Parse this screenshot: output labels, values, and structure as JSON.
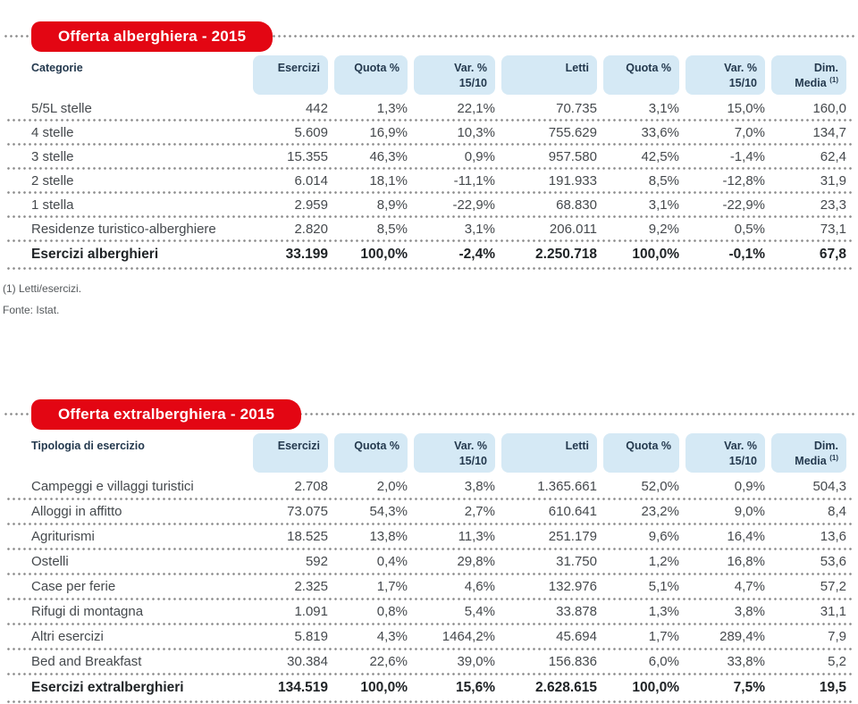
{
  "colors": {
    "banner_red": "#e30613",
    "header_pill_blue": "#d5e9f5",
    "header_text": "#24394e",
    "body_text": "#45494d",
    "divider_dot_gray": "#8c8c8c"
  },
  "tables": [
    {
      "title": "Offerta alberghiera - 2015",
      "first_col_header": "Categorie",
      "col_headers": [
        {
          "lines": [
            "Esercizi"
          ]
        },
        {
          "lines": [
            "Quota %"
          ]
        },
        {
          "lines": [
            "Var. %",
            "15/10"
          ]
        },
        {
          "lines": [
            "Letti"
          ]
        },
        {
          "lines": [
            "Quota %"
          ]
        },
        {
          "lines": [
            "Var. %",
            "15/10"
          ]
        },
        {
          "lines": [
            "Dim.",
            "Media"
          ],
          "sup": "(1)"
        }
      ],
      "rows": [
        {
          "label": "5/5L stelle",
          "values": [
            "442",
            "1,3%",
            "22,1%",
            "70.735",
            "3,1%",
            "15,0%",
            "160,0"
          ]
        },
        {
          "label": "4 stelle",
          "values": [
            "5.609",
            "16,9%",
            "10,3%",
            "755.629",
            "33,6%",
            "7,0%",
            "134,7"
          ]
        },
        {
          "label": "3 stelle",
          "values": [
            "15.355",
            "46,3%",
            "0,9%",
            "957.580",
            "42,5%",
            "-1,4%",
            "62,4"
          ]
        },
        {
          "label": "2 stelle",
          "values": [
            "6.014",
            "18,1%",
            "-11,1%",
            "191.933",
            "8,5%",
            "-12,8%",
            "31,9"
          ]
        },
        {
          "label": "1 stella",
          "values": [
            "2.959",
            "8,9%",
            "-22,9%",
            "68.830",
            "3,1%",
            "-22,9%",
            "23,3"
          ]
        },
        {
          "label": "Residenze turistico-alberghiere",
          "values": [
            "2.820",
            "8,5%",
            "3,1%",
            "206.011",
            "9,2%",
            "0,5%",
            "73,1"
          ]
        }
      ],
      "total": {
        "label": "Esercizi alberghieri",
        "values": [
          "33.199",
          "100,0%",
          "-2,4%",
          "2.250.718",
          "100,0%",
          "-0,1%",
          "67,8"
        ]
      },
      "footnotes": [
        "(1) Letti/esercizi.",
        "Fonte: Istat."
      ]
    },
    {
      "title": "Offerta extralberghiera - 2015",
      "first_col_header": "Tipologia di esercizio",
      "col_headers": [
        {
          "lines": [
            "Esercizi"
          ]
        },
        {
          "lines": [
            "Quota %"
          ]
        },
        {
          "lines": [
            "Var. %",
            "15/10"
          ]
        },
        {
          "lines": [
            "Letti"
          ]
        },
        {
          "lines": [
            "Quota %"
          ]
        },
        {
          "lines": [
            "Var. %",
            "15/10"
          ]
        },
        {
          "lines": [
            "Dim.",
            "Media"
          ],
          "sup": "(1)"
        }
      ],
      "rows": [
        {
          "label": "Campeggi e villaggi turistici",
          "values": [
            "2.708",
            "2,0%",
            "3,8%",
            "1.365.661",
            "52,0%",
            "0,9%",
            "504,3"
          ]
        },
        {
          "label": "Alloggi in affitto",
          "values": [
            "73.075",
            "54,3%",
            "2,7%",
            "610.641",
            "23,2%",
            "9,0%",
            "8,4"
          ]
        },
        {
          "label": "Agriturismi",
          "values": [
            "18.525",
            "13,8%",
            "11,3%",
            "251.179",
            "9,6%",
            "16,4%",
            "13,6"
          ]
        },
        {
          "label": "Ostelli",
          "values": [
            "592",
            "0,4%",
            "29,8%",
            "31.750",
            "1,2%",
            "16,8%",
            "53,6"
          ]
        },
        {
          "label": "Case per ferie",
          "values": [
            "2.325",
            "1,7%",
            "4,6%",
            "132.976",
            "5,1%",
            "4,7%",
            "57,2"
          ]
        },
        {
          "label": "Rifugi di montagna",
          "values": [
            "1.091",
            "0,8%",
            "5,4%",
            "33.878",
            "1,3%",
            "3,8%",
            "31,1"
          ]
        },
        {
          "label": "Altri esercizi",
          "values": [
            "5.819",
            "4,3%",
            "1464,2%",
            "45.694",
            "1,7%",
            "289,4%",
            "7,9"
          ]
        },
        {
          "label": "Bed and Breakfast",
          "values": [
            "30.384",
            "22,6%",
            "39,0%",
            "156.836",
            "6,0%",
            "33,8%",
            "5,2"
          ]
        }
      ],
      "total": {
        "label": "Esercizi extralberghieri",
        "values": [
          "134.519",
          "100,0%",
          "15,6%",
          "2.628.615",
          "100,0%",
          "7,5%",
          "19,5"
        ]
      },
      "footnotes": []
    }
  ]
}
